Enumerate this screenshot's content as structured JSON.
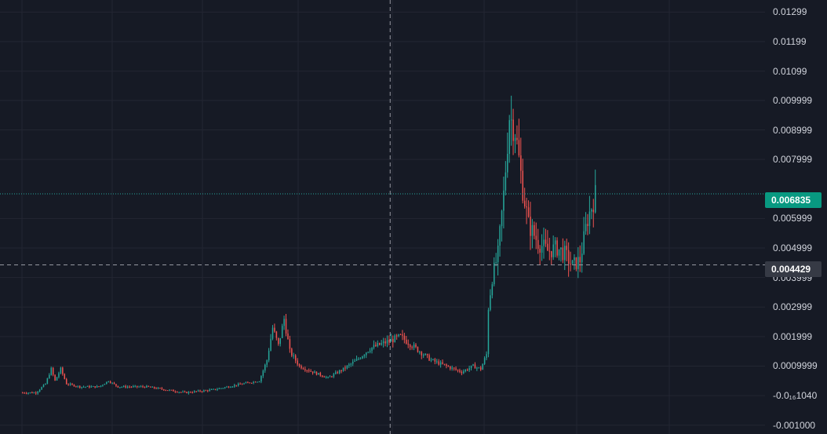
{
  "colors": {
    "background": "#161a25",
    "grid": "#232632",
    "up": "#26a69a",
    "down": "#ef5350",
    "axis_text": "#d1d4dc",
    "crosshair": "#9598a1",
    "last_price_line": "#26a69a",
    "last_price_tag": "#089981",
    "cursor_price_tag": "#363a45"
  },
  "price_axis": {
    "labels": [
      {
        "text": "0.01299",
        "value": 0.01299
      },
      {
        "text": "0.01199",
        "value": 0.01199
      },
      {
        "text": "0.01099",
        "value": 0.01099
      },
      {
        "text": "0.009999",
        "value": 0.009999
      },
      {
        "text": "0.008999",
        "value": 0.008999
      },
      {
        "text": "0.007999",
        "value": 0.007999
      },
      {
        "text": "0.005999",
        "value": 0.005999
      },
      {
        "text": "0.004999",
        "value": 0.004999
      },
      {
        "text": "0.003999",
        "value": 0.003999
      },
      {
        "text": "0.002999",
        "value": 0.002999
      },
      {
        "text": "0.001999",
        "value": 0.001999
      },
      {
        "text": "0.0009999",
        "value": 0.0009999
      },
      {
        "text": "-0.0₁₆1040",
        "value": 0.0
      },
      {
        "text": "-0.001000",
        "value": -0.001
      }
    ],
    "last_price": "0.006835",
    "cursor_price": "0.004429"
  },
  "chart_data": {
    "type": "candlestick",
    "ylim": [
      -0.0013,
      0.0134
    ],
    "grid": true,
    "crosshair": {
      "price": 0.004429,
      "x_fraction": 0.51
    },
    "last_price": 0.006835,
    "price_path": [
      [
        0,
        0.0001
      ],
      [
        7,
        0.0001
      ],
      [
        12,
        0.0004
      ],
      [
        15,
        0.0009
      ],
      [
        17,
        0.0005
      ],
      [
        20,
        0.0009
      ],
      [
        23,
        0.0004
      ],
      [
        30,
        0.0003
      ],
      [
        40,
        0.0003
      ],
      [
        45,
        0.0005
      ],
      [
        50,
        0.0003
      ],
      [
        65,
        0.0003
      ],
      [
        75,
        0.0002
      ],
      [
        85,
        0.0001
      ],
      [
        100,
        0.0002
      ],
      [
        115,
        0.0004
      ],
      [
        124,
        0.0005
      ],
      [
        128,
        0.0012
      ],
      [
        131,
        0.0023
      ],
      [
        134,
        0.0017
      ],
      [
        137,
        0.0026
      ],
      [
        140,
        0.0015
      ],
      [
        145,
        0.001
      ],
      [
        152,
        0.0008
      ],
      [
        160,
        0.0006
      ],
      [
        168,
        0.0009
      ],
      [
        175,
        0.0012
      ],
      [
        182,
        0.0016
      ],
      [
        190,
        0.0018
      ],
      [
        198,
        0.002
      ],
      [
        206,
        0.0016
      ],
      [
        214,
        0.0012
      ],
      [
        222,
        0.001
      ],
      [
        230,
        0.0008
      ],
      [
        236,
        0.001
      ],
      [
        240,
        0.0009
      ],
      [
        243,
        0.0014
      ],
      [
        244,
        0.003
      ],
      [
        246,
        0.004
      ],
      [
        249,
        0.0048
      ],
      [
        252,
        0.0068
      ],
      [
        255,
        0.0095
      ],
      [
        258,
        0.009
      ],
      [
        262,
        0.007
      ],
      [
        265,
        0.0058
      ],
      [
        270,
        0.0052
      ],
      [
        275,
        0.0049
      ],
      [
        280,
        0.005
      ],
      [
        284,
        0.0048
      ],
      [
        288,
        0.0044
      ],
      [
        292,
        0.0046
      ],
      [
        296,
        0.006
      ],
      [
        300,
        0.0068
      ]
    ]
  }
}
